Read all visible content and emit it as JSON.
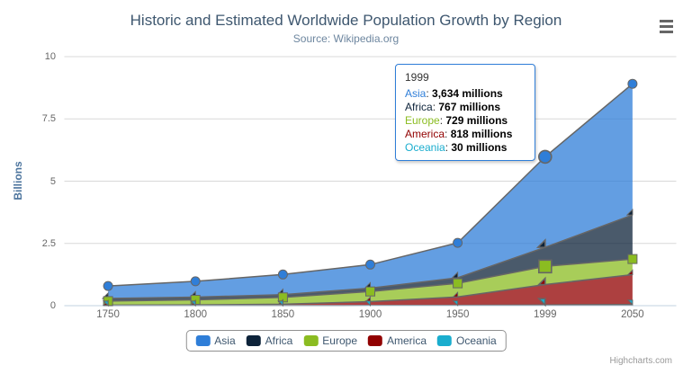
{
  "chart_data": {
    "type": "area",
    "stacking": "normal",
    "title": "Historic and Estimated Worldwide Population Growth by Region",
    "subtitle": "Source: Wikipedia.org",
    "categories": [
      "1750",
      "1800",
      "1850",
      "1900",
      "1950",
      "1999",
      "2050"
    ],
    "series": [
      {
        "name": "Asia",
        "color": "#2f7ed8",
        "marker": "circle",
        "values": [
          502,
          635,
          809,
          947,
          1402,
          3634,
          5268
        ]
      },
      {
        "name": "Africa",
        "color": "#0d233a",
        "marker": "diamond",
        "values": [
          106,
          107,
          111,
          133,
          221,
          767,
          1766
        ]
      },
      {
        "name": "Europe",
        "color": "#8bbc21",
        "marker": "square",
        "values": [
          163,
          203,
          276,
          408,
          547,
          729,
          628
        ]
      },
      {
        "name": "America",
        "color": "#910000",
        "marker": "triangle",
        "values": [
          18,
          31,
          54,
          156,
          339,
          818,
          1201
        ]
      },
      {
        "name": "Oceania",
        "color": "#1aadce",
        "marker": "triangle-down",
        "values": [
          2,
          2,
          2,
          6,
          13,
          30,
          46
        ]
      }
    ],
    "values_unit": "millions",
    "xlabel": "",
    "ylabel": "Billions",
    "ylim": [
      0,
      10
    ],
    "yticks": [
      "0",
      "2.5",
      "5",
      "7.5",
      "10"
    ],
    "grid": true,
    "legend_position": "bottom",
    "fill_opacity": 0.75,
    "line_color": "#666666",
    "hover_category_index": 5
  },
  "tooltip": {
    "header": "1999",
    "rows": [
      {
        "name": "Asia",
        "color": "#2f7ed8",
        "value": "3,634 millions"
      },
      {
        "name": "Africa",
        "color": "#0d233a",
        "value": "767 millions"
      },
      {
        "name": "Europe",
        "color": "#8bbc21",
        "value": "729 millions"
      },
      {
        "name": "America",
        "color": "#910000",
        "value": "818 millions"
      },
      {
        "name": "Oceania",
        "color": "#1aadce",
        "value": "30 millions"
      }
    ]
  },
  "credits": {
    "label": "Highcharts.com"
  },
  "colors": {
    "title": "#3E576F",
    "subtitle": "#6D869F",
    "axis_label": "#666666",
    "y_title": "#4d759e",
    "gridline": "#D8D8D8",
    "axis_line": "#C0D0E0",
    "legend_border": "#909090",
    "legend_text": "#3E576F",
    "tooltip_border": "#2f7ed8",
    "credits_text": "#999999",
    "menu_icon": "#666666"
  }
}
